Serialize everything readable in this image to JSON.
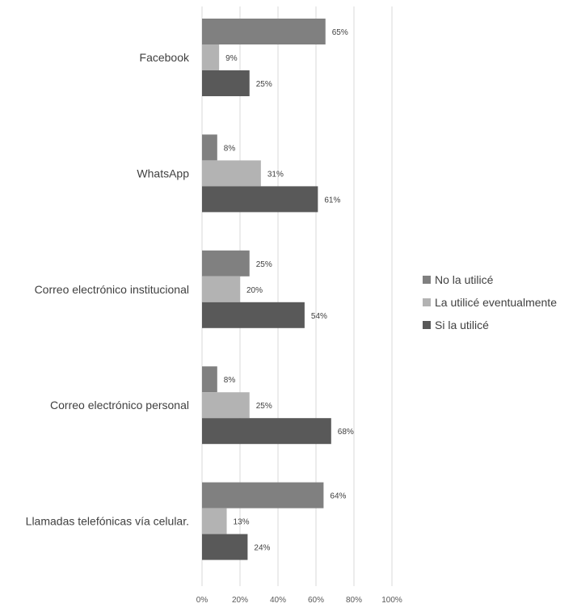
{
  "chart_data": {
    "type": "bar",
    "orientation": "horizontal",
    "categories": [
      "Facebook",
      "WhatsApp",
      "Correo electrónico institucional",
      "Correo electrónico personal",
      "Llamadas telefónicas vía celular."
    ],
    "series": [
      {
        "name": "No la utilicé",
        "color": "#808080",
        "values": [
          65,
          8,
          25,
          8,
          64
        ],
        "labels": [
          "65%",
          "8%",
          "25%",
          "8%",
          "64%"
        ]
      },
      {
        "name": "La utilicé eventualmente",
        "color": "#b3b3b3",
        "values": [
          9,
          31,
          20,
          25,
          13
        ],
        "labels": [
          "9%",
          "31%",
          "20%",
          "25%",
          "13%"
        ]
      },
      {
        "name": "Si la utilicé",
        "color": "#595959",
        "values": [
          25,
          61,
          54,
          68,
          24
        ],
        "labels": [
          "25%",
          "61%",
          "54%",
          "68%",
          "24%"
        ]
      }
    ],
    "xlim": [
      0,
      100
    ],
    "xticks": [
      "0%",
      "20%",
      "40%",
      "60%",
      "80%",
      "100%"
    ],
    "grid": true,
    "legend_position": "right"
  }
}
